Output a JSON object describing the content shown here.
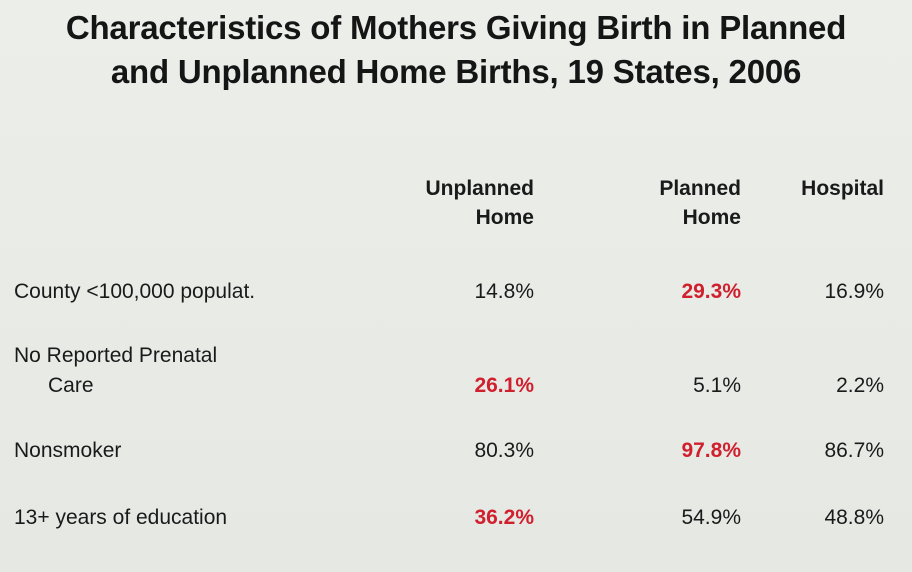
{
  "title": {
    "line1": "Characteristics of Mothers Giving Birth in Planned",
    "line2": "and Unplanned Home Births, 19 States, 2006"
  },
  "columns": {
    "unplanned": {
      "line1": "Unplanned",
      "line2": "Home"
    },
    "planned": {
      "line1": "Planned",
      "line2": "Home"
    },
    "hospital": {
      "line1": "Hospital"
    }
  },
  "highlight_color": "#d0202e",
  "rows": [
    {
      "label_lines": [
        "County <100,000 populat."
      ],
      "unplanned": "14.8%",
      "planned": "29.3%",
      "hospital": "16.9%",
      "highlighted": "planned"
    },
    {
      "label_lines": [
        "No Reported Prenatal",
        "Care"
      ],
      "unplanned": "26.1%",
      "planned": "5.1%",
      "hospital": "2.2%",
      "highlighted": "unplanned"
    },
    {
      "label_lines": [
        "Nonsmoker"
      ],
      "unplanned": "80.3%",
      "planned": "97.8%",
      "hospital": "86.7%",
      "highlighted": "planned"
    },
    {
      "label_lines": [
        "13+ years of education"
      ],
      "unplanned": "36.2%",
      "planned": "54.9%",
      "hospital": "48.8%",
      "highlighted": "unplanned"
    }
  ]
}
